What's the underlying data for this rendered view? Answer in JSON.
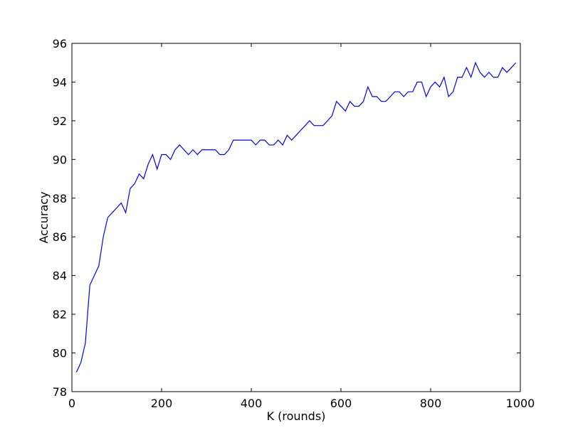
{
  "chart_data": {
    "type": "line",
    "title": "",
    "xlabel": "K (rounds)",
    "ylabel": "Accuracy",
    "xlim": [
      0,
      1000
    ],
    "ylim": [
      78,
      96
    ],
    "xticks": [
      0,
      200,
      400,
      600,
      800,
      1000
    ],
    "yticks": [
      78,
      80,
      82,
      84,
      86,
      88,
      90,
      92,
      94,
      96
    ],
    "grid": false,
    "line_color": "#0000ff",
    "series": [
      {
        "x": [
          10,
          20,
          30,
          40,
          50,
          60,
          70,
          80,
          90,
          100,
          110,
          120,
          130,
          140,
          150,
          160,
          170,
          180,
          190,
          200,
          210,
          220,
          230,
          240,
          250,
          260,
          270,
          280,
          290,
          300,
          310,
          320,
          330,
          340,
          350,
          360,
          370,
          380,
          390,
          400,
          410,
          420,
          430,
          440,
          450,
          460,
          470,
          480,
          490,
          500,
          510,
          520,
          530,
          540,
          550,
          560,
          570,
          580,
          590,
          600,
          610,
          620,
          630,
          640,
          650,
          660,
          670,
          680,
          690,
          700,
          710,
          720,
          730,
          740,
          750,
          760,
          770,
          780,
          790,
          800,
          810,
          820,
          830,
          840,
          850,
          860,
          870,
          880,
          890,
          900,
          910,
          920,
          930,
          940,
          950,
          960,
          970,
          980,
          990
        ],
        "values": [
          79.0,
          79.5,
          80.5,
          83.5,
          84.0,
          84.5,
          86.0,
          87.0,
          87.25,
          87.5,
          87.75,
          87.25,
          88.5,
          88.75,
          89.25,
          89.0,
          89.75,
          90.25,
          89.5,
          90.25,
          90.25,
          90.0,
          90.5,
          90.75,
          90.5,
          90.25,
          90.5,
          90.25,
          90.5,
          90.5,
          90.5,
          90.5,
          90.25,
          90.25,
          90.5,
          91.0,
          91.0,
          91.0,
          91.0,
          91.0,
          90.75,
          91.0,
          91.0,
          90.75,
          90.75,
          91.0,
          90.75,
          91.25,
          91.0,
          91.25,
          91.5,
          91.75,
          92.0,
          91.75,
          91.75,
          91.75,
          92.0,
          92.25,
          93.0,
          92.75,
          92.5,
          93.0,
          92.75,
          92.75,
          93.0,
          93.75,
          93.25,
          93.25,
          93.0,
          93.0,
          93.25,
          93.5,
          93.5,
          93.25,
          93.5,
          93.5,
          94.0,
          94.0,
          93.25,
          93.75,
          94.0,
          93.75,
          94.25,
          93.25,
          93.5,
          94.25,
          94.25,
          94.75,
          94.25,
          95.0,
          94.5,
          94.25,
          94.5,
          94.25,
          94.25,
          94.75,
          94.5,
          94.75,
          95.0
        ]
      }
    ]
  }
}
